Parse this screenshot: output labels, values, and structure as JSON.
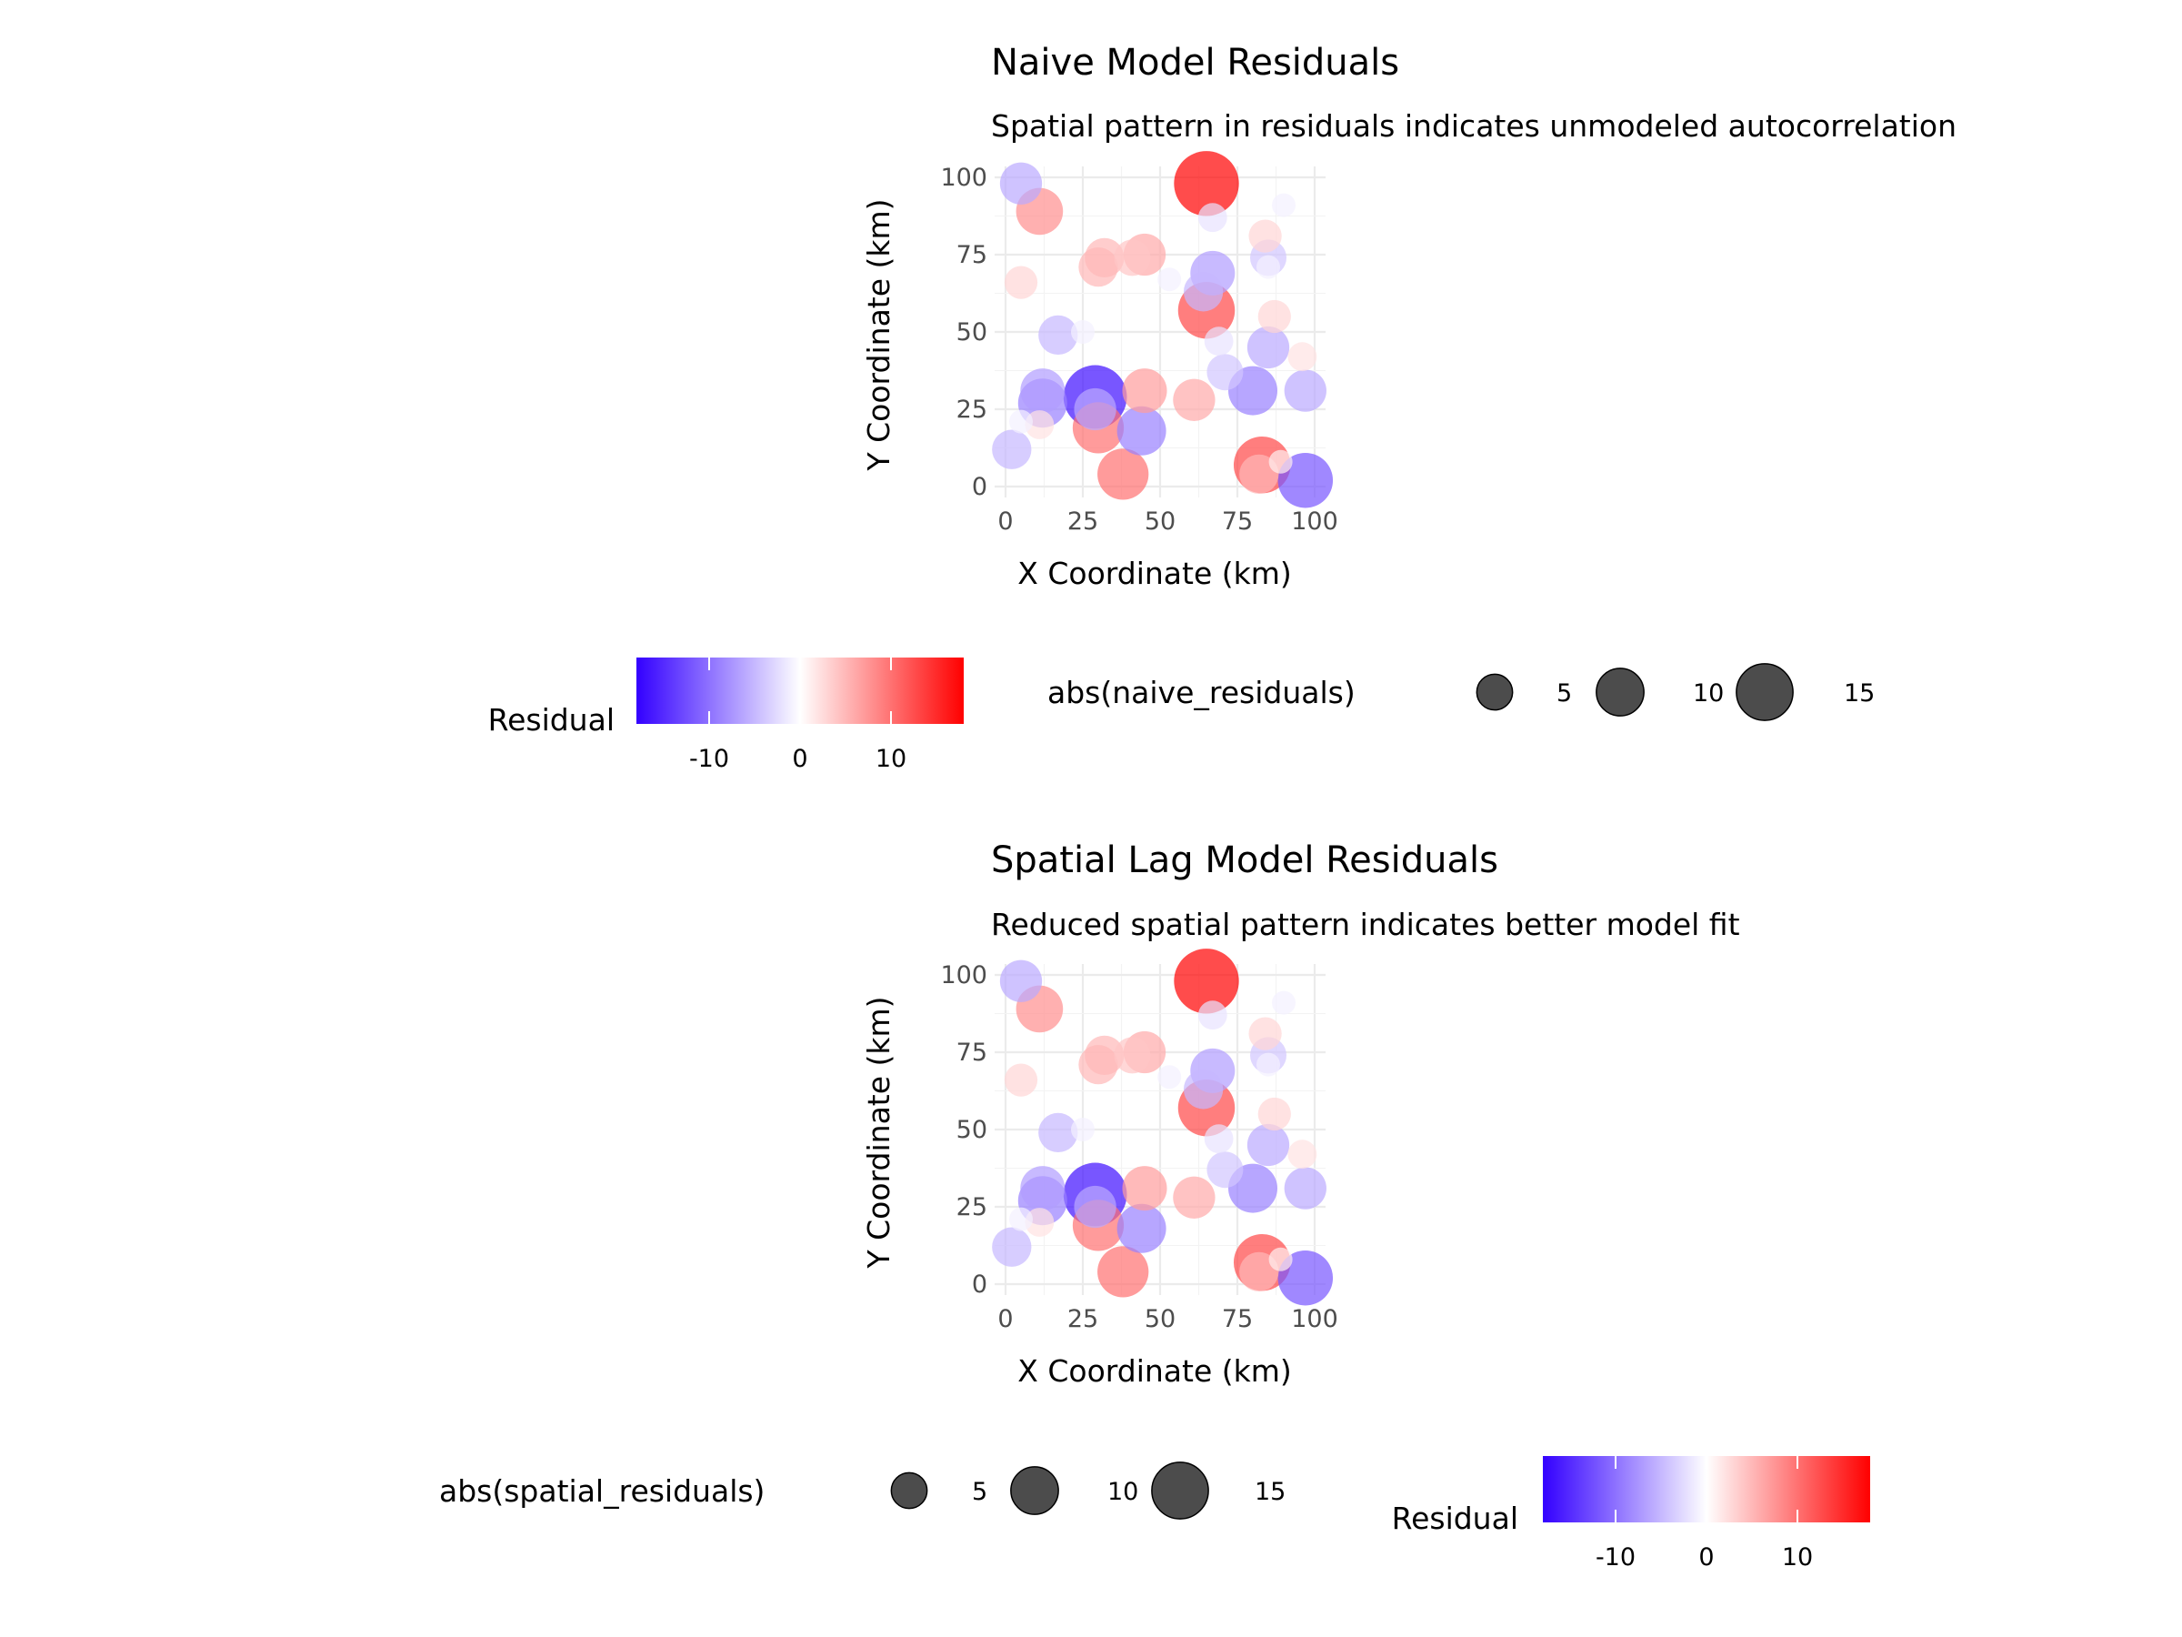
{
  "chart_data": [
    {
      "type": "scatter",
      "title": "Naive Model Residuals",
      "subtitle": "Spatial pattern in residuals indicates unmodeled autocorrelation",
      "xlabel": "X Coordinate (km)",
      "ylabel": "Y Coordinate (km)",
      "xlim": [
        0,
        100
      ],
      "ylim": [
        0,
        100
      ],
      "xticks": [
        "0",
        "25",
        "50",
        "75",
        "100"
      ],
      "yticks": [
        "0",
        "25",
        "50",
        "75",
        "100"
      ],
      "color_legend": {
        "title": "Residual",
        "ticks": [
          "-10",
          "0",
          "10"
        ],
        "tick_values": [
          -10,
          0,
          10
        ],
        "range": [
          -18,
          18
        ],
        "low": "#3300ff",
        "mid": "#ffffff",
        "high": "#ff0000"
      },
      "size_legend": {
        "title": "abs(naive_residuals)",
        "values": [
          5,
          10,
          15
        ],
        "labels": [
          "5",
          "10",
          "15"
        ]
      },
      "points": [
        {
          "x": 5,
          "y": 98,
          "residual": -6
        },
        {
          "x": 11,
          "y": 89,
          "residual": 8
        },
        {
          "x": 65,
          "y": 98,
          "residual": 18
        },
        {
          "x": 67,
          "y": 87,
          "residual": -2
        },
        {
          "x": 90,
          "y": 91,
          "residual": -1
        },
        {
          "x": 84,
          "y": 81,
          "residual": 3
        },
        {
          "x": 85,
          "y": 74,
          "residual": -4
        },
        {
          "x": 30,
          "y": 71,
          "residual": 5
        },
        {
          "x": 32,
          "y": 74,
          "residual": 5
        },
        {
          "x": 41,
          "y": 74,
          "residual": 4
        },
        {
          "x": 45,
          "y": 75,
          "residual": 6
        },
        {
          "x": 53,
          "y": 67,
          "residual": -1
        },
        {
          "x": 5,
          "y": 66,
          "residual": 3
        },
        {
          "x": 64,
          "y": 63,
          "residual": -5
        },
        {
          "x": 67,
          "y": 69,
          "residual": -7
        },
        {
          "x": 65,
          "y": 57,
          "residual": 13
        },
        {
          "x": 87,
          "y": 55,
          "residual": 3
        },
        {
          "x": 17,
          "y": 49,
          "residual": -5
        },
        {
          "x": 25,
          "y": 50,
          "residual": -1
        },
        {
          "x": 69,
          "y": 47,
          "residual": -2
        },
        {
          "x": 85,
          "y": 45,
          "residual": -6
        },
        {
          "x": 96,
          "y": 42,
          "residual": 2
        },
        {
          "x": 71,
          "y": 37,
          "residual": -4
        },
        {
          "x": 12,
          "y": 31,
          "residual": -7
        },
        {
          "x": 12,
          "y": 27,
          "residual": -9
        },
        {
          "x": 29,
          "y": 29,
          "residual": -17
        },
        {
          "x": 29,
          "y": 25,
          "residual": -6
        },
        {
          "x": 45,
          "y": 31,
          "residual": 7
        },
        {
          "x": 61,
          "y": 28,
          "residual": 6
        },
        {
          "x": 80,
          "y": 31,
          "residual": -9
        },
        {
          "x": 97,
          "y": 31,
          "residual": -6
        },
        {
          "x": 5,
          "y": 21,
          "residual": -1
        },
        {
          "x": 11,
          "y": 20,
          "residual": 2
        },
        {
          "x": 30,
          "y": 19,
          "residual": 10
        },
        {
          "x": 44,
          "y": 18,
          "residual": -9
        },
        {
          "x": 2,
          "y": 12,
          "residual": -5
        },
        {
          "x": 38,
          "y": 4,
          "residual": 10
        },
        {
          "x": 83,
          "y": 7,
          "residual": 13
        },
        {
          "x": 82,
          "y": 4,
          "residual": 5
        },
        {
          "x": 89,
          "y": 8,
          "residual": 1
        },
        {
          "x": 97,
          "y": 2,
          "residual": -12
        },
        {
          "x": 85,
          "y": 71,
          "residual": -1
        }
      ]
    },
    {
      "type": "scatter",
      "title": "Spatial Lag Model Residuals",
      "subtitle": "Reduced spatial pattern indicates better model fit",
      "xlabel": "X Coordinate (km)",
      "ylabel": "Y Coordinate (km)",
      "xlim": [
        0,
        100
      ],
      "ylim": [
        0,
        100
      ],
      "xticks": [
        "0",
        "25",
        "50",
        "75",
        "100"
      ],
      "yticks": [
        "0",
        "25",
        "50",
        "75",
        "100"
      ],
      "color_legend": {
        "title": "Residual",
        "ticks": [
          "-10",
          "0",
          "10"
        ],
        "tick_values": [
          -10,
          0,
          10
        ],
        "range": [
          -18,
          18
        ],
        "low": "#3300ff",
        "mid": "#ffffff",
        "high": "#ff0000"
      },
      "size_legend": {
        "title": "abs(spatial_residuals)",
        "values": [
          5,
          10,
          15
        ],
        "labels": [
          "5",
          "10",
          "15"
        ]
      },
      "points": [
        {
          "x": 5,
          "y": 98,
          "residual": -6
        },
        {
          "x": 11,
          "y": 89,
          "residual": 8
        },
        {
          "x": 65,
          "y": 98,
          "residual": 18
        },
        {
          "x": 67,
          "y": 87,
          "residual": -2
        },
        {
          "x": 90,
          "y": 91,
          "residual": -1
        },
        {
          "x": 84,
          "y": 81,
          "residual": 3
        },
        {
          "x": 85,
          "y": 74,
          "residual": -4
        },
        {
          "x": 30,
          "y": 71,
          "residual": 5
        },
        {
          "x": 32,
          "y": 74,
          "residual": 5
        },
        {
          "x": 41,
          "y": 74,
          "residual": 4
        },
        {
          "x": 45,
          "y": 75,
          "residual": 6
        },
        {
          "x": 53,
          "y": 67,
          "residual": -1
        },
        {
          "x": 5,
          "y": 66,
          "residual": 3
        },
        {
          "x": 64,
          "y": 63,
          "residual": -5
        },
        {
          "x": 67,
          "y": 69,
          "residual": -7
        },
        {
          "x": 65,
          "y": 57,
          "residual": 13
        },
        {
          "x": 87,
          "y": 55,
          "residual": 3
        },
        {
          "x": 17,
          "y": 49,
          "residual": -5
        },
        {
          "x": 25,
          "y": 50,
          "residual": -1
        },
        {
          "x": 69,
          "y": 47,
          "residual": -2
        },
        {
          "x": 85,
          "y": 45,
          "residual": -6
        },
        {
          "x": 96,
          "y": 42,
          "residual": 2
        },
        {
          "x": 71,
          "y": 37,
          "residual": -4
        },
        {
          "x": 12,
          "y": 31,
          "residual": -7
        },
        {
          "x": 12,
          "y": 27,
          "residual": -9
        },
        {
          "x": 29,
          "y": 29,
          "residual": -17
        },
        {
          "x": 29,
          "y": 25,
          "residual": -6
        },
        {
          "x": 45,
          "y": 31,
          "residual": 7
        },
        {
          "x": 61,
          "y": 28,
          "residual": 6
        },
        {
          "x": 80,
          "y": 31,
          "residual": -9
        },
        {
          "x": 97,
          "y": 31,
          "residual": -6
        },
        {
          "x": 5,
          "y": 21,
          "residual": -1
        },
        {
          "x": 11,
          "y": 20,
          "residual": 2
        },
        {
          "x": 30,
          "y": 19,
          "residual": 10
        },
        {
          "x": 44,
          "y": 18,
          "residual": -9
        },
        {
          "x": 2,
          "y": 12,
          "residual": -5
        },
        {
          "x": 38,
          "y": 4,
          "residual": 10
        },
        {
          "x": 83,
          "y": 7,
          "residual": 13
        },
        {
          "x": 82,
          "y": 4,
          "residual": 5
        },
        {
          "x": 89,
          "y": 8,
          "residual": 1
        },
        {
          "x": 97,
          "y": 2,
          "residual": -12
        },
        {
          "x": 85,
          "y": 71,
          "residual": -1
        }
      ]
    }
  ]
}
